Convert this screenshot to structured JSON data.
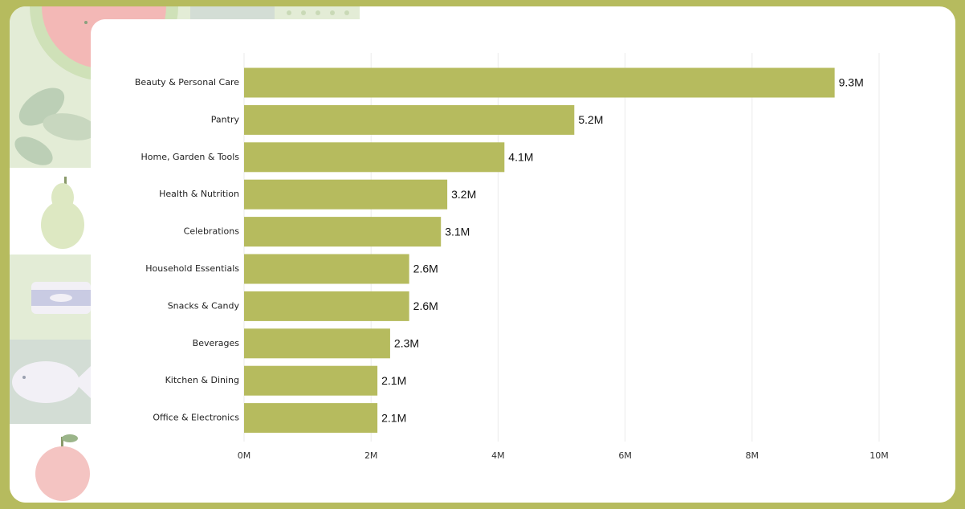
{
  "colors": {
    "frame": "#b6bb5e",
    "bar": "#b6bb5e",
    "grid": "#ebebeb",
    "decor_tile_light": "#e3ecd6",
    "decor_tile_dark": "#d3ddd5"
  },
  "decor": {
    "icons": [
      "watermelon-icon",
      "leaf-icon",
      "pear-icon",
      "can-icon",
      "fish-icon",
      "apple-icon"
    ]
  },
  "chart_data": {
    "type": "bar",
    "orientation": "horizontal",
    "categories": [
      "Beauty & Personal Care",
      "Pantry",
      "Home, Garden & Tools",
      "Health & Nutrition",
      "Celebrations",
      "Household Essentials",
      "Snacks & Candy",
      "Beverages",
      "Kitchen & Dining",
      "Office & Electronics"
    ],
    "values": [
      9.3,
      5.2,
      4.1,
      3.2,
      3.1,
      2.6,
      2.6,
      2.3,
      2.1,
      2.1
    ],
    "value_labels": [
      "9.3M",
      "5.2M",
      "4.1M",
      "3.2M",
      "3.1M",
      "2.6M",
      "2.6M",
      "2.3M",
      "2.1M",
      "2.1M"
    ],
    "x_ticks": [
      0,
      2,
      4,
      6,
      8,
      10
    ],
    "x_tick_labels": [
      "0M",
      "2M",
      "4M",
      "6M",
      "8M",
      "10M"
    ],
    "xlim": [
      0,
      10
    ],
    "grid": true,
    "title": "",
    "xlabel": "",
    "ylabel": ""
  }
}
